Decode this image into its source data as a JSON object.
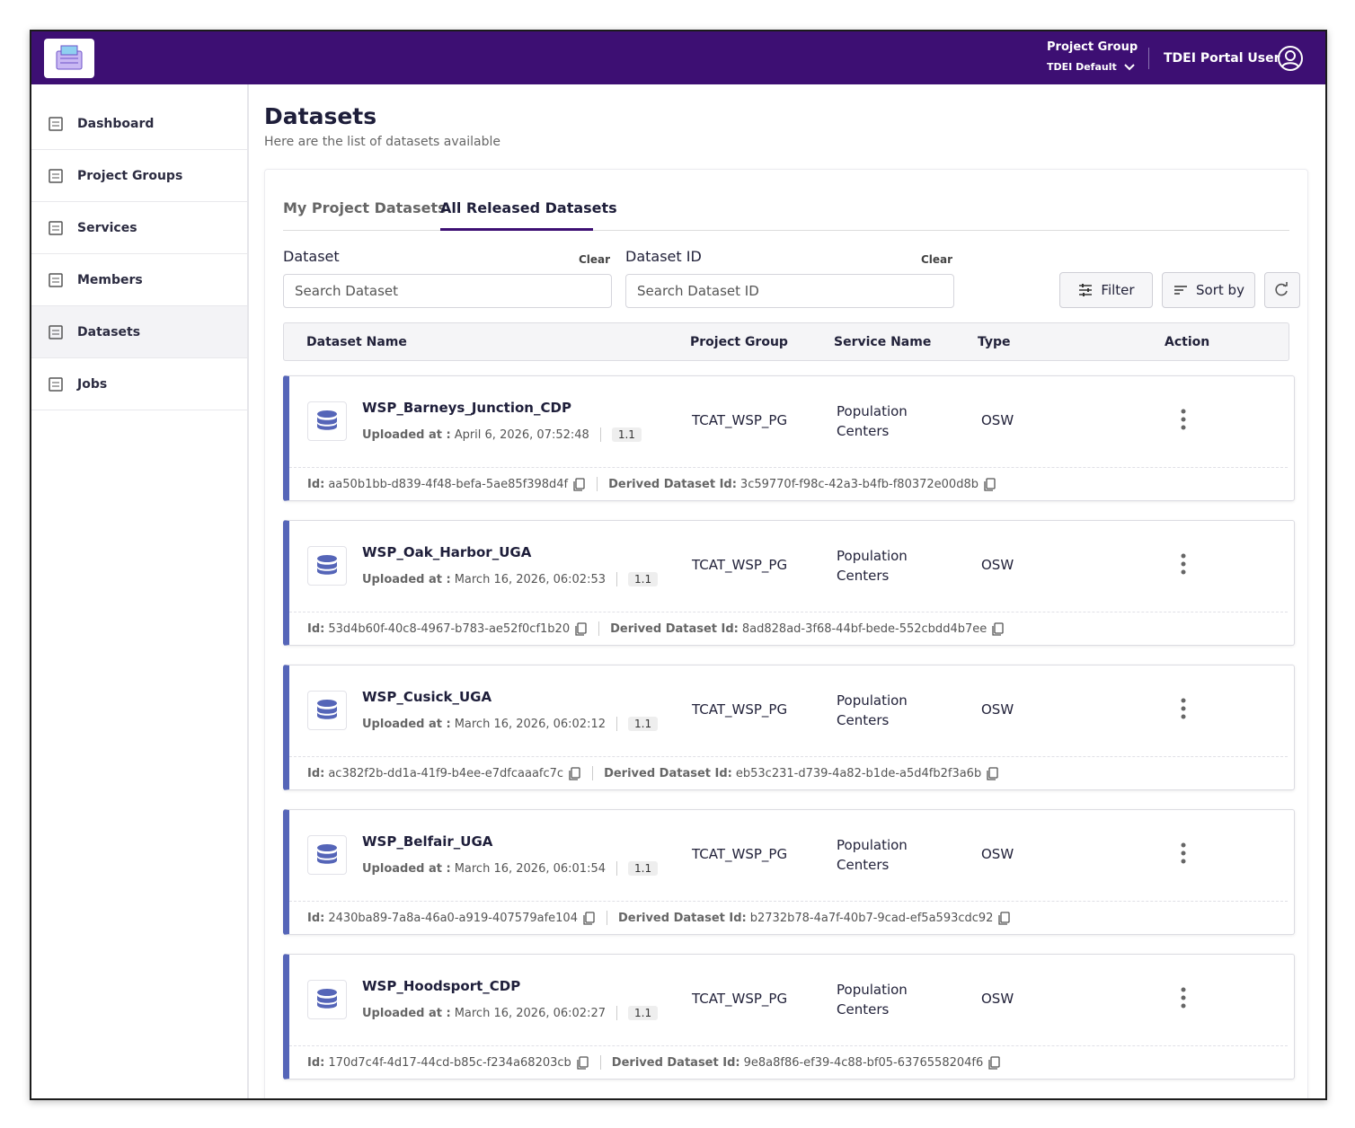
{
  "header": {
    "project_group_label": "Project Group",
    "project_group": "TDEI Default",
    "user": "TDEI Portal User"
  },
  "sidebar": {
    "items": [
      "Dashboard",
      "Project Groups",
      "Services",
      "Members",
      "Datasets",
      "Jobs"
    ]
  },
  "page": {
    "title": "Datasets",
    "subtitle": "Here are the list of datasets available"
  },
  "tabs": [
    "My Project Datasets",
    "All Released Datasets"
  ],
  "filters": [
    {
      "label": "Dataset",
      "clear": "Clear",
      "placeholder": "Search Dataset"
    },
    {
      "label": "Dataset ID",
      "clear": "Clear",
      "placeholder": "Search Dataset ID"
    }
  ],
  "buttons": {
    "filter": "Filter",
    "sort": "Sort by"
  },
  "table": {
    "columns": [
      "Dataset Name",
      "Project Group",
      "Service Name",
      "Type",
      "Action"
    ],
    "uploaded_label": "Uploaded at :",
    "id_label": "Id:",
    "derived_label": "Derived Dataset Id:",
    "rows": [
      {
        "name": "WSP_Barneys_Junction_CDP",
        "uploaded_at": "April 6, 2026, 07:52:48",
        "version": "1.1",
        "project_group": "TCAT_WSP_PG",
        "service_name": "Population Centers",
        "type": "OSW",
        "id": "aa50b1bb-d839-4f48-befa-5ae85f398d4f",
        "derived_id": "3c59770f-f98c-42a3-b4fb-f80372e00d8b"
      },
      {
        "name": "WSP_Oak_Harbor_UGA",
        "uploaded_at": "March 16, 2026, 06:02:53",
        "version": "1.1",
        "project_group": "TCAT_WSP_PG",
        "service_name": "Population Centers",
        "type": "OSW",
        "id": "53d4b60f-40c8-4967-b783-ae52f0cf1b20",
        "derived_id": "8ad828ad-3f68-44bf-bede-552cbdd4b7ee"
      },
      {
        "name": "WSP_Cusick_UGA",
        "uploaded_at": "March 16, 2026, 06:02:12",
        "version": "1.1",
        "project_group": "TCAT_WSP_PG",
        "service_name": "Population Centers",
        "type": "OSW",
        "id": "ac382f2b-dd1a-41f9-b4ee-e7dfcaaafc7c",
        "derived_id": "eb53c231-d739-4a82-b1de-a5d4fb2f3a6b"
      },
      {
        "name": "WSP_Belfair_UGA",
        "uploaded_at": "March 16, 2026, 06:01:54",
        "version": "1.1",
        "project_group": "TCAT_WSP_PG",
        "service_name": "Population Centers",
        "type": "OSW",
        "id": "2430ba89-7a8a-46a0-a919-407579afe104",
        "derived_id": "b2732b78-4a7f-40b7-9cad-ef5a593cdc92"
      },
      {
        "name": "WSP_Hoodsport_CDP",
        "uploaded_at": "March 16, 2026, 06:02:27",
        "version": "1.1",
        "project_group": "TCAT_WSP_PG",
        "service_name": "Population Centers",
        "type": "OSW",
        "id": "170d7c4f-4d17-44cd-b85c-f234a68203cb",
        "derived_id": "9e8a8f86-ef39-4c88-bf05-6376558204f6"
      }
    ]
  }
}
